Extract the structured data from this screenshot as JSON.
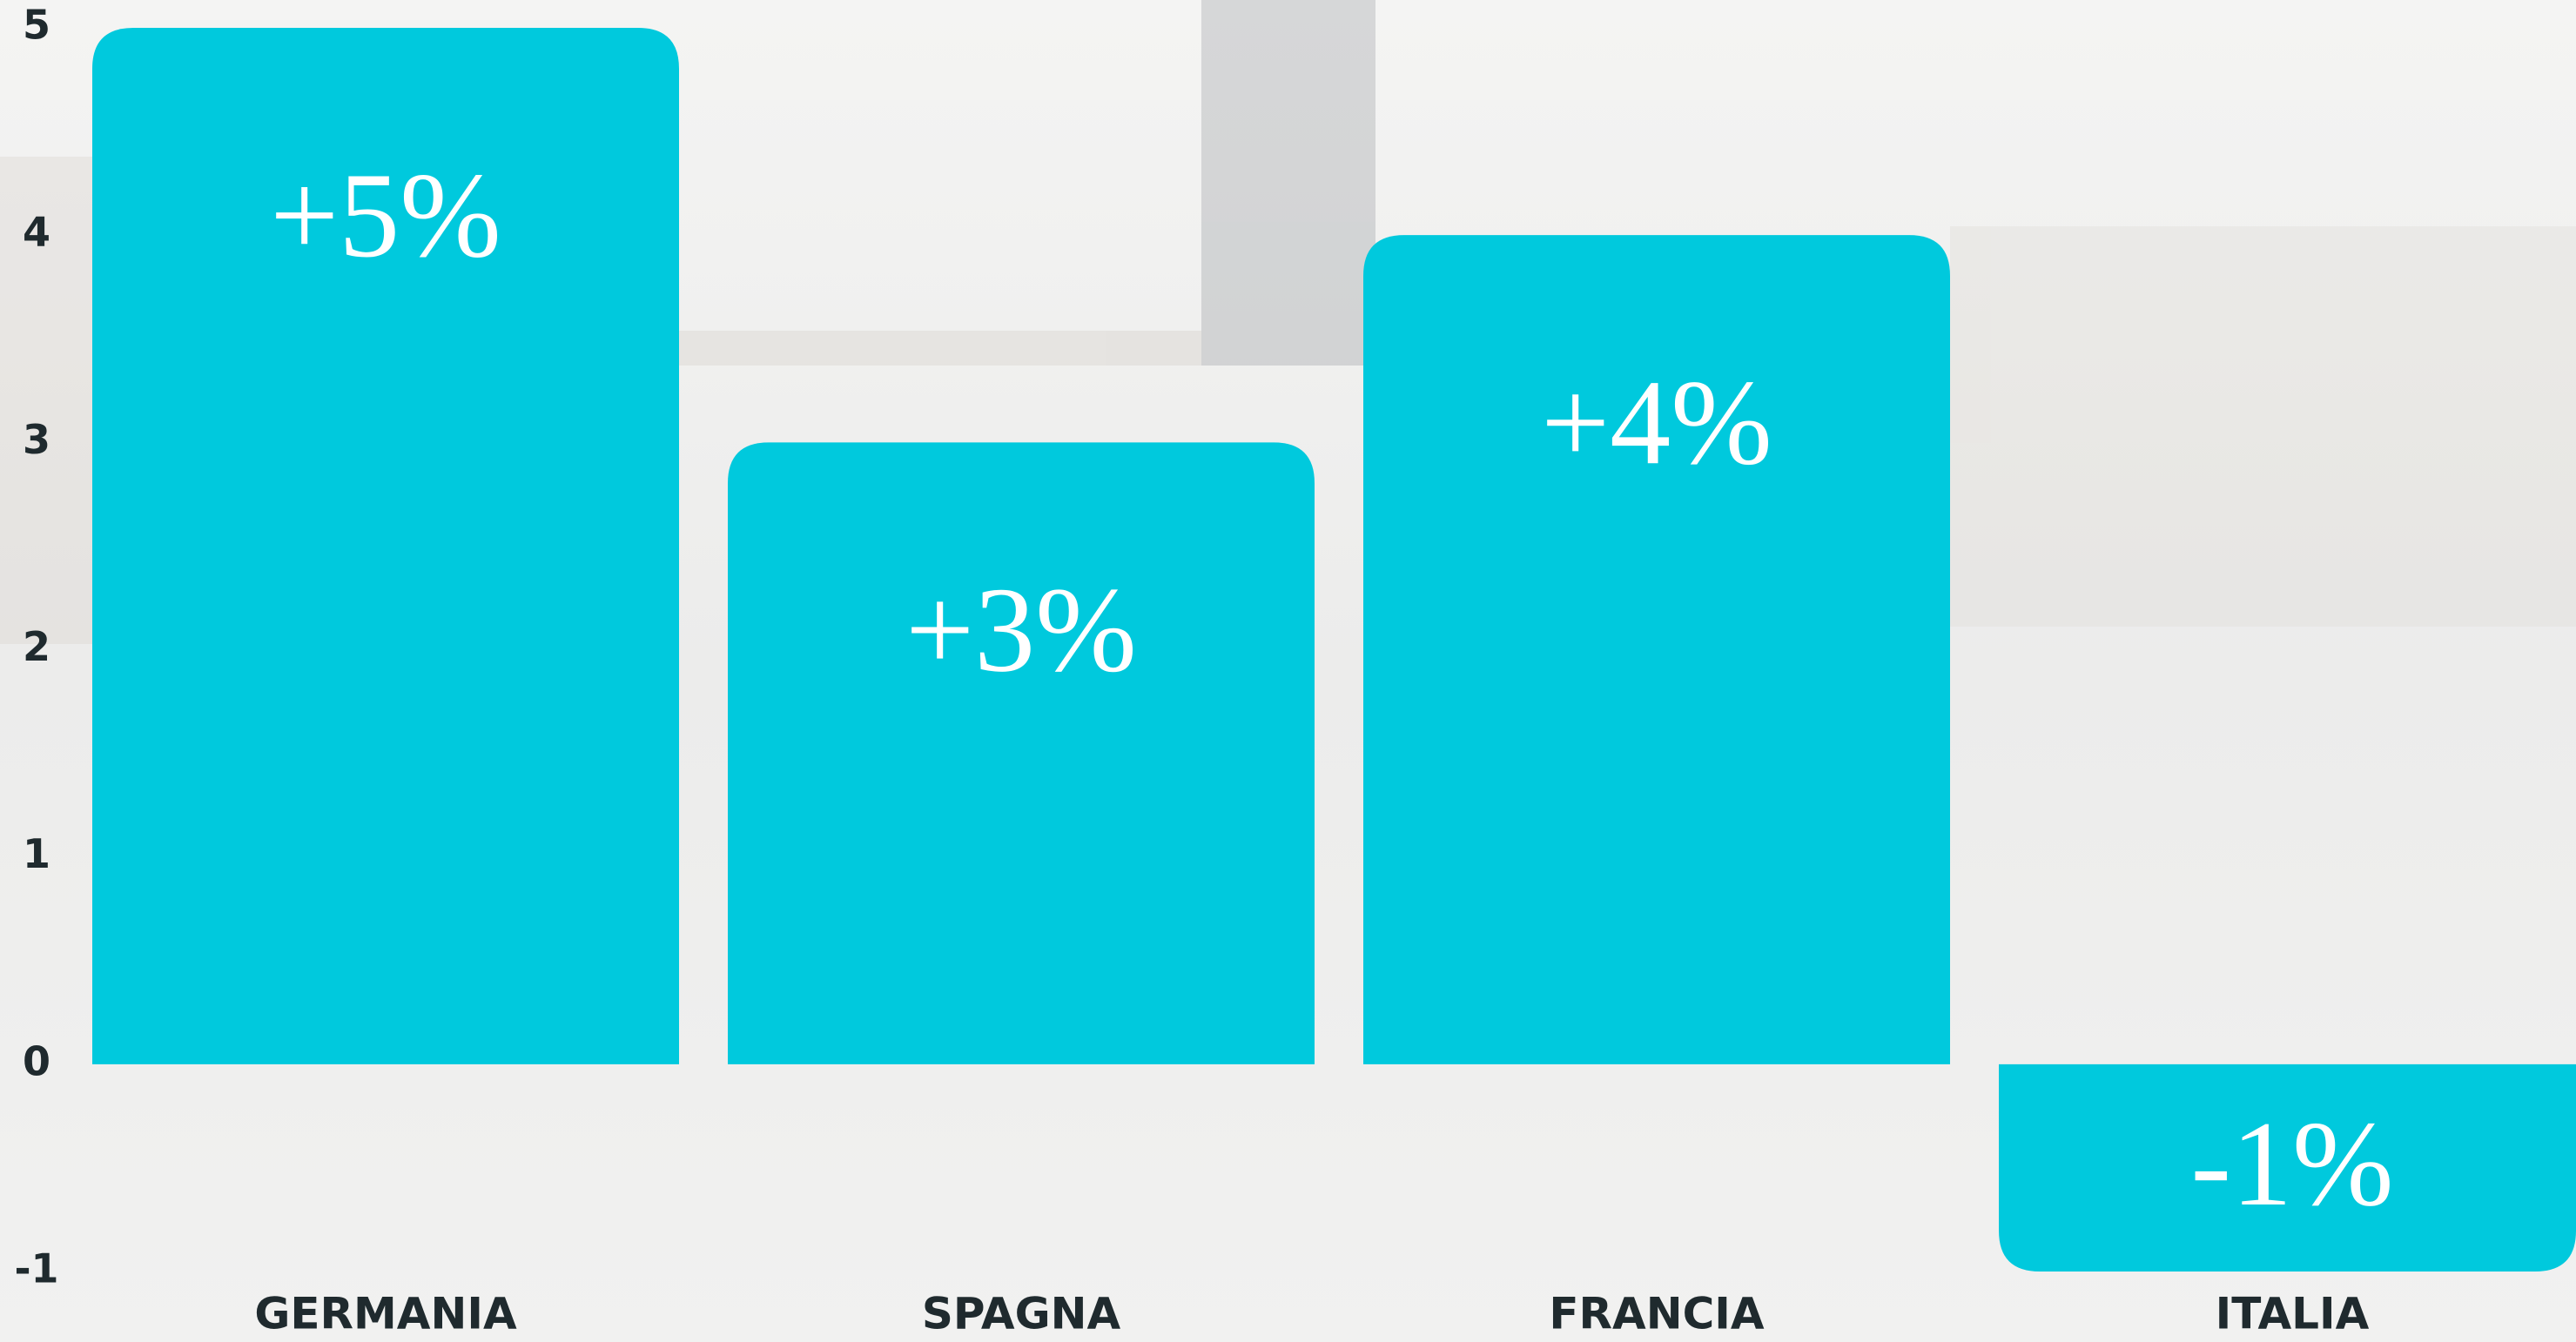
{
  "chart_data": {
    "type": "bar",
    "categories": [
      "GERMANIA",
      "SPAGNA",
      "FRANCIA",
      "ITALIA"
    ],
    "values": [
      5,
      3,
      4,
      -1
    ],
    "value_labels": [
      "+5%",
      "+3%",
      "+4%",
      "-1%"
    ],
    "color": "#00c9dd",
    "ylim": [
      -1,
      5
    ],
    "yticks": [
      -1,
      0,
      1,
      2,
      3,
      4,
      5
    ],
    "grid": false
  }
}
